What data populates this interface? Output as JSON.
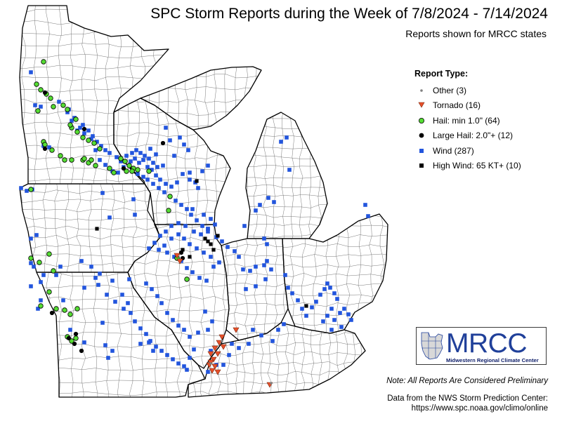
{
  "header": {
    "title": "SPC Storm Reports during the Week of 7/8/2024 - 7/14/2024",
    "subtitle": "Reports shown for MRCC states"
  },
  "legend": {
    "title": "Report Type:",
    "items": [
      {
        "key": "other",
        "label": "Other (3)",
        "color": "#808080",
        "symbol": "small-dot"
      },
      {
        "key": "tornado",
        "label": "Tornado (16)",
        "color": "#e8502a",
        "symbol": "down-triangle"
      },
      {
        "key": "hail",
        "label": "Hail: min 1.0\" (64)",
        "color": "#55dd33",
        "symbol": "circle"
      },
      {
        "key": "large_hail",
        "label": "Large Hail: 2.0\"+ (12)",
        "color": "#000000",
        "symbol": "circle"
      },
      {
        "key": "wind",
        "label": "Wind (287)",
        "color": "#2255dd",
        "symbol": "square"
      },
      {
        "key": "high_wind",
        "label": "High Wind: 65 KT+ (10)",
        "color": "#000000",
        "symbol": "square"
      }
    ]
  },
  "logo": {
    "text": "MRCC",
    "subtext": "Midwestern Regional Climate Center",
    "color": "#20409a"
  },
  "note": "Note: All Reports Are Considered Preliminary",
  "credit": {
    "line1": "Data from the NWS Storm Prediction Center:",
    "line2": "https://www.spc.noaa.gov/climo/online"
  },
  "map": {
    "states": [
      "Minnesota",
      "Iowa",
      "Missouri",
      "Wisconsin",
      "Illinois",
      "Michigan",
      "Indiana",
      "Ohio",
      "Kentucky"
    ],
    "colors": {
      "land": "#ffffff",
      "state_border": "#000000",
      "county_border": "#6a6a6a"
    }
  }
}
